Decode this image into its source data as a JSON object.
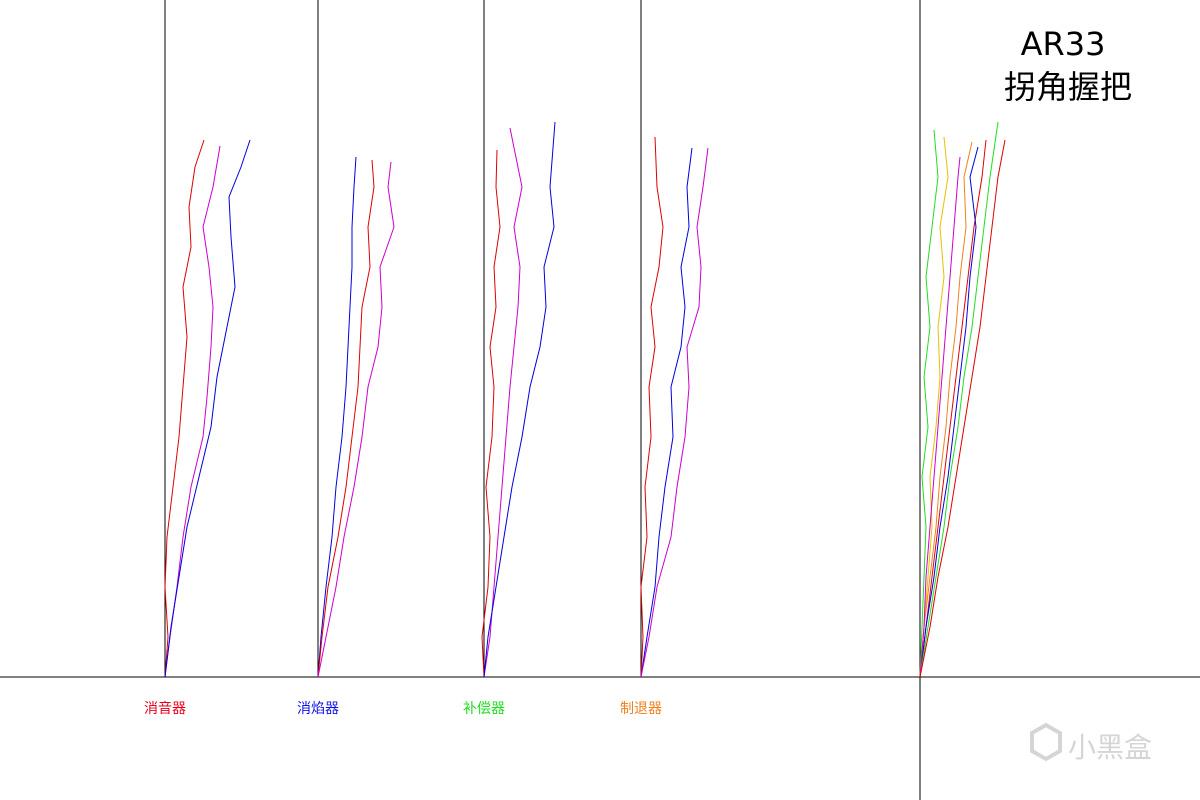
{
  "chart_data": [
    {
      "type": "line",
      "label": "消音器",
      "label_color": "#e8001c",
      "xlim": [
        -30,
        120
      ],
      "ylim": [
        0,
        677
      ],
      "series": [
        {
          "color": "#e00000",
          "x": [
            0,
            3,
            0,
            2,
            8,
            14,
            18,
            22,
            18,
            26,
            24,
            30,
            39
          ],
          "values": [
            0,
            40,
            90,
            140,
            190,
            240,
            290,
            340,
            390,
            430,
            470,
            510,
            537
          ]
        },
        {
          "color": "#cc00cc",
          "x": [
            0,
            5,
            12,
            18,
            26,
            38,
            42,
            46,
            48,
            44,
            38,
            48,
            55
          ],
          "values": [
            0,
            40,
            90,
            140,
            190,
            240,
            280,
            330,
            370,
            410,
            450,
            490,
            531
          ]
        },
        {
          "color": "#0000e0",
          "x": [
            0,
            6,
            14,
            22,
            34,
            46,
            52,
            62,
            70,
            66,
            64,
            76,
            85
          ],
          "values": [
            0,
            50,
            100,
            150,
            200,
            250,
            300,
            350,
            390,
            440,
            480,
            510,
            537
          ]
        }
      ]
    },
    {
      "type": "line",
      "label": "消焰器",
      "label_color": "#1010e8",
      "xlim": [
        -30,
        120
      ],
      "ylim": [
        0,
        677
      ],
      "series": [
        {
          "color": "#0000e0",
          "x": [
            0,
            3,
            8,
            14,
            18,
            24,
            28,
            30,
            32,
            34,
            34,
            36,
            38
          ],
          "values": [
            0,
            40,
            90,
            140,
            190,
            240,
            290,
            330,
            370,
            410,
            450,
            490,
            520
          ]
        },
        {
          "color": "#e00000",
          "x": [
            0,
            4,
            10,
            20,
            28,
            34,
            40,
            42,
            44,
            52,
            50,
            56,
            54
          ],
          "values": [
            0,
            40,
            90,
            140,
            190,
            240,
            290,
            330,
            370,
            410,
            450,
            490,
            517
          ]
        },
        {
          "color": "#cc00cc",
          "x": [
            0,
            8,
            18,
            26,
            36,
            44,
            50,
            60,
            64,
            62,
            76,
            70,
            73
          ],
          "values": [
            0,
            40,
            90,
            140,
            190,
            240,
            290,
            330,
            370,
            410,
            450,
            490,
            515
          ]
        }
      ]
    },
    {
      "type": "line",
      "label": "补偿器",
      "label_color": "#22dd22",
      "xlim": [
        -30,
        120
      ],
      "ylim": [
        0,
        677
      ],
      "series": [
        {
          "color": "#e00000",
          "x": [
            0,
            -2,
            4,
            6,
            2,
            8,
            10,
            6,
            12,
            10,
            16,
            12,
            13
          ],
          "values": [
            0,
            40,
            90,
            140,
            190,
            240,
            290,
            330,
            370,
            410,
            450,
            490,
            527
          ]
        },
        {
          "color": "#cc00cc",
          "x": [
            0,
            6,
            10,
            14,
            18,
            22,
            26,
            30,
            34,
            36,
            30,
            38,
            26
          ],
          "values": [
            0,
            40,
            90,
            140,
            190,
            240,
            290,
            330,
            370,
            410,
            450,
            490,
            549
          ]
        },
        {
          "color": "#0000e0",
          "x": [
            0,
            4,
            12,
            20,
            28,
            38,
            46,
            56,
            62,
            60,
            70,
            66,
            71
          ],
          "values": [
            0,
            40,
            90,
            140,
            190,
            240,
            290,
            330,
            370,
            410,
            450,
            490,
            555
          ]
        }
      ]
    },
    {
      "type": "line",
      "label": "制退器",
      "label_color": "#f08020",
      "xlim": [
        -30,
        120
      ],
      "ylim": [
        0,
        677
      ],
      "series": [
        {
          "color": "#e00000",
          "x": [
            0,
            2,
            0,
            6,
            4,
            10,
            8,
            14,
            10,
            18,
            22,
            16,
            14
          ],
          "values": [
            0,
            40,
            90,
            140,
            190,
            240,
            290,
            330,
            370,
            410,
            450,
            490,
            540
          ]
        },
        {
          "color": "#0000e0",
          "x": [
            0,
            6,
            14,
            18,
            24,
            32,
            30,
            40,
            44,
            40,
            48,
            46,
            51
          ],
          "values": [
            0,
            40,
            90,
            140,
            190,
            240,
            290,
            330,
            370,
            410,
            450,
            490,
            529
          ]
        },
        {
          "color": "#cc00cc",
          "x": [
            0,
            8,
            16,
            30,
            36,
            44,
            48,
            46,
            58,
            60,
            56,
            62,
            67
          ],
          "values": [
            0,
            40,
            90,
            140,
            190,
            240,
            290,
            330,
            370,
            410,
            450,
            490,
            529
          ]
        }
      ]
    },
    {
      "type": "line",
      "title": "AR33",
      "subtitle": "拐角握把",
      "xlim": [
        -30,
        120
      ],
      "ylim": [
        0,
        677
      ],
      "series": [
        {
          "color": "#22dd22",
          "x": [
            0,
            2,
            4,
            6,
            2,
            8,
            4,
            10,
            6,
            12,
            18,
            14
          ],
          "values": [
            0,
            50,
            100,
            150,
            200,
            250,
            300,
            350,
            400,
            450,
            500,
            547
          ]
        },
        {
          "color": "#e8c000",
          "x": [
            0,
            4,
            8,
            12,
            10,
            16,
            20,
            18,
            24,
            20,
            28,
            24
          ],
          "values": [
            0,
            50,
            100,
            150,
            200,
            250,
            300,
            350,
            400,
            450,
            500,
            540
          ]
        },
        {
          "color": "#e00000",
          "x": [
            0,
            6,
            12,
            18,
            24,
            30,
            36,
            42,
            48,
            54,
            62,
            66
          ],
          "values": [
            0,
            50,
            100,
            150,
            200,
            250,
            300,
            350,
            400,
            450,
            500,
            537
          ]
        },
        {
          "color": "#0000e0",
          "x": [
            0,
            6,
            14,
            20,
            28,
            34,
            40,
            46,
            50,
            56,
            50,
            58
          ],
          "values": [
            0,
            50,
            100,
            150,
            200,
            250,
            300,
            350,
            400,
            450,
            500,
            530
          ]
        },
        {
          "color": "#f08020",
          "x": [
            0,
            4,
            10,
            16,
            20,
            26,
            30,
            36,
            40,
            46,
            44,
            52
          ],
          "values": [
            0,
            50,
            100,
            150,
            200,
            250,
            300,
            350,
            400,
            450,
            500,
            535
          ]
        },
        {
          "color": "#22dd22",
          "x": [
            0,
            8,
            16,
            24,
            30,
            38,
            44,
            52,
            58,
            64,
            70,
            78
          ],
          "values": [
            0,
            50,
            100,
            150,
            200,
            250,
            300,
            350,
            400,
            450,
            500,
            555
          ]
        },
        {
          "color": "#cc00cc",
          "x": [
            0,
            4,
            6,
            10,
            14,
            18,
            22,
            26,
            30,
            34,
            38,
            40
          ],
          "values": [
            0,
            50,
            100,
            150,
            200,
            250,
            300,
            350,
            400,
            450,
            500,
            520
          ]
        },
        {
          "color": "#e00000",
          "x": [
            0,
            10,
            18,
            28,
            36,
            44,
            52,
            60,
            66,
            72,
            78,
            85
          ],
          "values": [
            0,
            50,
            100,
            150,
            200,
            250,
            300,
            350,
            400,
            450,
            500,
            537
          ]
        }
      ]
    }
  ],
  "watermark": "小黑盒"
}
